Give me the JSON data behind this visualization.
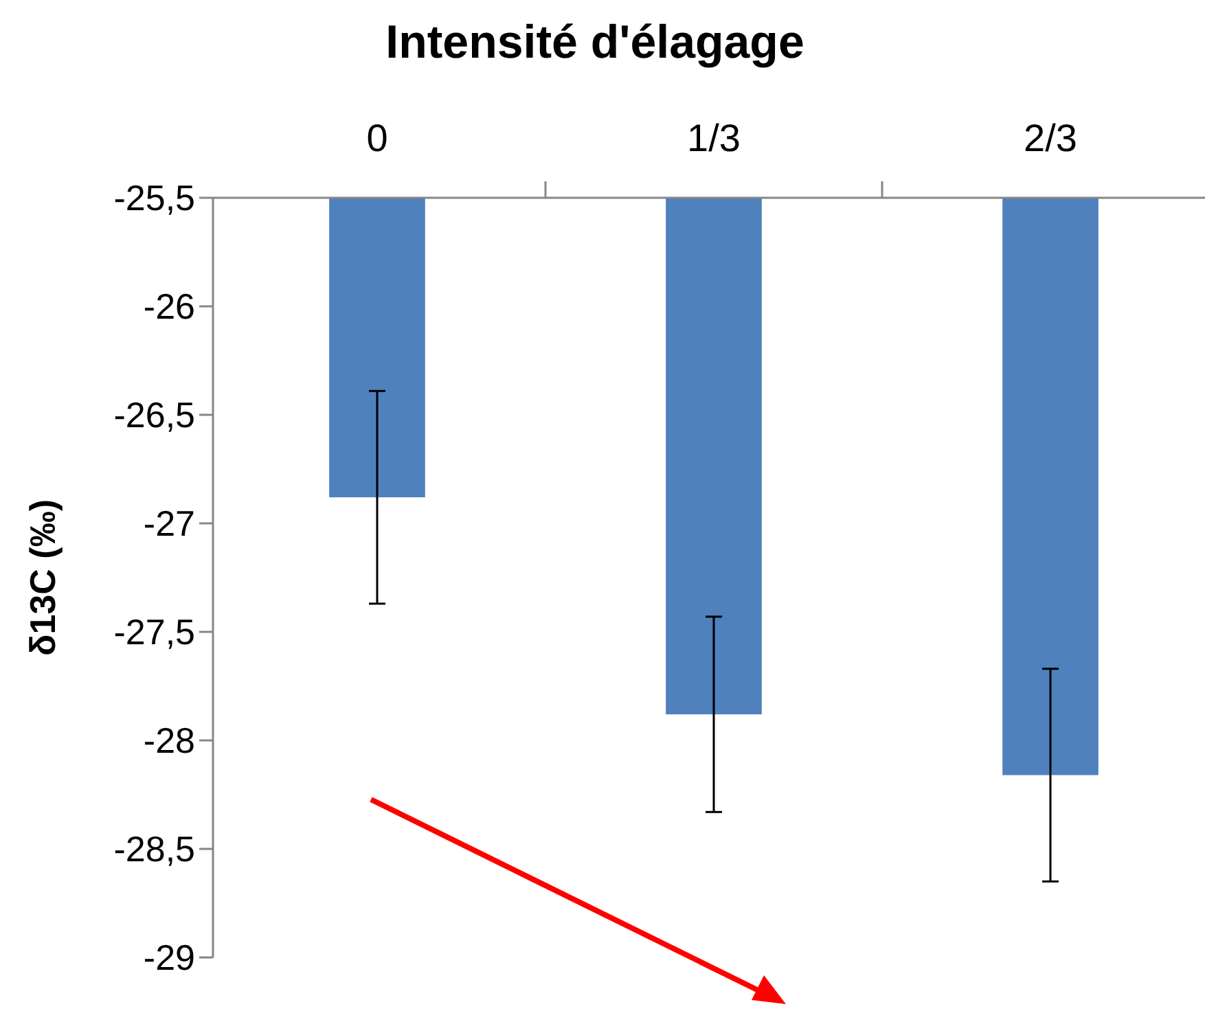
{
  "chart_data": {
    "type": "bar",
    "title": "Intensité d'élagage",
    "ylabel": "δ13C (‰)",
    "categories": [
      "0",
      "1/3",
      "2/3"
    ],
    "values": [
      -26.88,
      -27.88,
      -28.16
    ],
    "errors": [
      0.49,
      0.45,
      0.49
    ],
    "color": "#4f81bd",
    "ylim": [
      -29,
      -25.5
    ],
    "yticks": [
      {
        "value": -29,
        "label": "-29"
      },
      {
        "value": -28.5,
        "label": "-28,5"
      },
      {
        "value": -28,
        "label": "-28"
      },
      {
        "value": -27.5,
        "label": "-27,5"
      },
      {
        "value": -27,
        "label": "-27"
      },
      {
        "value": -26.5,
        "label": "-26,5"
      },
      {
        "value": -26,
        "label": "-26"
      },
      {
        "value": -25.5,
        "label": "-25,5"
      }
    ],
    "grid": false
  }
}
